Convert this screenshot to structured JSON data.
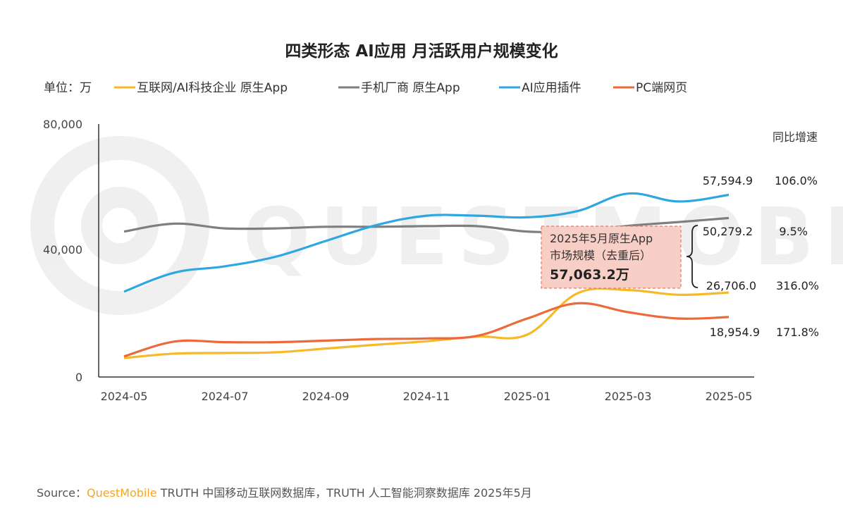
{
  "chart_data": {
    "type": "line",
    "title": "四类形态 AI应用 月活跃用户规模变化",
    "unit_label": "单位：万",
    "x": [
      "2024-05",
      "2024-06",
      "2024-07",
      "2024-08",
      "2024-09",
      "2024-10",
      "2024-11",
      "2024-12",
      "2025-01",
      "2025-02",
      "2025-03",
      "2025-04",
      "2025-05"
    ],
    "x_tick_labels": [
      "2024-05",
      "2024-07",
      "2024-09",
      "2024-11",
      "2025-01",
      "2025-03",
      "2025-05"
    ],
    "y_tick_labels": [
      "80,000",
      "40,000",
      "0"
    ],
    "ylim": [
      0,
      80000
    ],
    "grid": false,
    "legend_position": "top",
    "series": [
      {
        "name": "互联网/AI科技企业 原生App",
        "color": "#f7b928",
        "values": [
          6000,
          7400,
          7600,
          7800,
          9000,
          10200,
          11300,
          12800,
          13400,
          26500,
          27500,
          26000,
          26706.0
        ]
      },
      {
        "name": "手机厂商 原生App",
        "color": "#7f7f7f",
        "values": [
          46000,
          48500,
          47000,
          47000,
          47500,
          47500,
          47700,
          47700,
          46000,
          46000,
          47800,
          49000,
          50279.2
        ]
      },
      {
        "name": "AI应用插件",
        "color": "#2ea7e0",
        "values": [
          27000,
          33000,
          35000,
          38000,
          43000,
          48000,
          51000,
          51000,
          50500,
          52500,
          58000,
          55500,
          57594.9
        ]
      },
      {
        "name": "PC端网页",
        "color": "#ec6a3a",
        "values": [
          6500,
          11200,
          11000,
          11000,
          11500,
          12000,
          12200,
          13000,
          18500,
          23300,
          20500,
          18500,
          18954.9
        ]
      }
    ],
    "end_labels": [
      "26,706.0",
      "50,279.2",
      "57,594.9",
      "18,954.9"
    ],
    "growth_header": "同比增速",
    "growth_rates": [
      "316.0%",
      "9.5%",
      "106.0%",
      "171.8%"
    ],
    "annotation": {
      "line1": "2025年5月原生App",
      "line2": "市场规模（去重后）",
      "value": "57,063.2万"
    }
  },
  "watermark": "QUESTMOBILE",
  "source": {
    "prefix": "Source：",
    "brand": "QuestMobile",
    "text": " TRUTH 中国移动互联网数据库，TRUTH 人工智能洞察数据库 2025年5月"
  },
  "colors": {
    "annotation_fill": "#f8cfc6",
    "annotation_border": "#e8796a",
    "axis": "#333333"
  }
}
